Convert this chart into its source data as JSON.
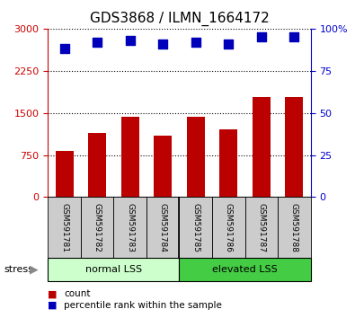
{
  "title": "GDS3868 / ILMN_1664172",
  "samples": [
    "GSM591781",
    "GSM591782",
    "GSM591783",
    "GSM591784",
    "GSM591785",
    "GSM591786",
    "GSM591787",
    "GSM591788"
  ],
  "counts": [
    830,
    1150,
    1430,
    1100,
    1430,
    1200,
    1780,
    1780
  ],
  "percentile_ranks": [
    88,
    92,
    93,
    91,
    92,
    91,
    95,
    95
  ],
  "ylim_left": [
    0,
    3000
  ],
  "yticks_left": [
    0,
    750,
    1500,
    2250,
    3000
  ],
  "ylim_right": [
    0,
    100
  ],
  "yticks_right": [
    0,
    25,
    50,
    75,
    100
  ],
  "bar_color": "#bb0000",
  "dot_color": "#0000bb",
  "group1_label": "normal LSS",
  "group2_label": "elevated LSS",
  "group1_color": "#ccffcc",
  "group2_color": "#44cc44",
  "stress_label": "stress",
  "legend_count": "count",
  "legend_percentile": "percentile rank within the sample",
  "left_tick_color": "#cc0000",
  "right_tick_color": "#0000cc",
  "title_fontsize": 11,
  "bar_width": 0.55,
  "dot_size": 45,
  "sample_box_color": "#cccccc",
  "arrow_color": "#888888"
}
